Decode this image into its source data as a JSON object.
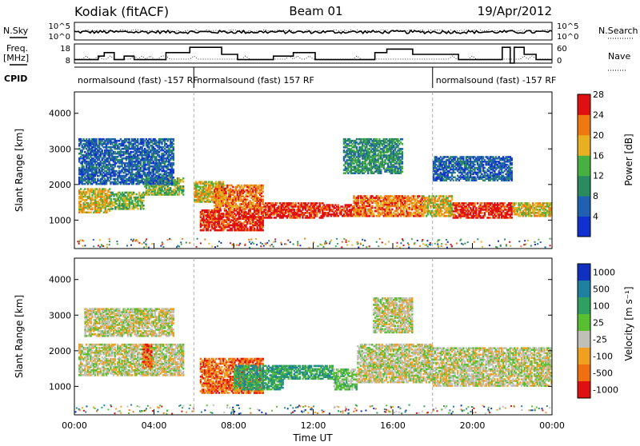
{
  "header": {
    "station": "Kodiak (fitACF)",
    "beam": "Beam 01",
    "date": "19/Apr/2012"
  },
  "status_panel": {
    "nsky_label": "N.Sky",
    "nsky_ticks": [
      "10^5",
      "10^0"
    ],
    "nsearch_label": "N.Search",
    "nsearch_ticks": [
      "10^5",
      "10^0"
    ],
    "freq_label": "Freq.",
    "freq_unit": "[MHz]",
    "freq_ticks": [
      "18",
      "8"
    ],
    "nave_label": "Nave",
    "nave_ticks": [
      "60",
      "0"
    ],
    "cpid_label": "CPID",
    "cpid_segments": [
      {
        "label": "normalsound (fast) -157 RF",
        "start": 0,
        "end": 6
      },
      {
        "label": "normalsound (fast) 157 RF",
        "start": 6,
        "end": 18
      },
      {
        "label": "normalsound (fast) -157 RF",
        "start": 18,
        "end": 24
      }
    ],
    "freq_steps": [
      {
        "t": 0,
        "f": 10
      },
      {
        "t": 1.2,
        "f": 12
      },
      {
        "t": 1.5,
        "f": 14
      },
      {
        "t": 2.0,
        "f": 10
      },
      {
        "t": 2.5,
        "f": 12
      },
      {
        "t": 3.0,
        "f": 10
      },
      {
        "t": 4.6,
        "f": 14
      },
      {
        "t": 5.8,
        "f": 17
      },
      {
        "t": 7.4,
        "f": 13
      },
      {
        "t": 8.2,
        "f": 10
      },
      {
        "t": 10.0,
        "f": 12
      },
      {
        "t": 11.0,
        "f": 14
      },
      {
        "t": 12.1,
        "f": 10
      },
      {
        "t": 15.1,
        "f": 14
      },
      {
        "t": 15.7,
        "f": 16
      },
      {
        "t": 17.0,
        "f": 13
      },
      {
        "t": 19.3,
        "f": 10
      },
      {
        "t": 19.8,
        "f": 10
      },
      {
        "t": 21.5,
        "f": 17
      },
      {
        "t": 21.9,
        "f": 8
      },
      {
        "t": 22.1,
        "f": 17
      },
      {
        "t": 22.6,
        "f": 13
      },
      {
        "t": 23.2,
        "f": 10
      },
      {
        "t": 24,
        "f": 10
      }
    ]
  },
  "chart_data": [
    {
      "type": "heatmap",
      "panel": "power",
      "ylabel": "Slant Range [km]",
      "y_ticks": [
        1000,
        2000,
        3000,
        4000
      ],
      "ylim": [
        200,
        4600
      ],
      "xlim": [
        0,
        24
      ],
      "colorbar_label": "Power [dB]",
      "colorbar_ticks": [
        "4",
        "8",
        "12",
        "16",
        "20",
        "24",
        "28"
      ],
      "colorbar_colors": [
        "#1030d0",
        "#2060b0",
        "#2a8a60",
        "#48b040",
        "#e8b020",
        "#f07810",
        "#e01010"
      ],
      "regions": [
        {
          "t0": 0.2,
          "t1": 1.8,
          "r0": 1200,
          "r1": 1900,
          "level": 4
        },
        {
          "t0": 1.8,
          "t1": 3.5,
          "r0": 1300,
          "r1": 1800,
          "level": 3
        },
        {
          "t0": 3.5,
          "t1": 5.5,
          "r0": 1700,
          "r1": 2200,
          "level": 3
        },
        {
          "t0": 6.0,
          "t1": 7.5,
          "r0": 1500,
          "r1": 2100,
          "level": 4
        },
        {
          "t0": 6.3,
          "t1": 9.5,
          "r0": 700,
          "r1": 1300,
          "level": 6
        },
        {
          "t0": 7.0,
          "t1": 9.5,
          "r0": 1300,
          "r1": 2000,
          "level": 5
        },
        {
          "t0": 9.5,
          "t1": 12.5,
          "r0": 1050,
          "r1": 1500,
          "level": 6
        },
        {
          "t0": 12.5,
          "t1": 14.0,
          "r0": 1100,
          "r1": 1450,
          "level": 6
        },
        {
          "t0": 14.0,
          "t1": 17.5,
          "r0": 1100,
          "r1": 1700,
          "level": 5
        },
        {
          "t0": 13.5,
          "t1": 16.5,
          "r0": 2300,
          "r1": 3300,
          "level": 2
        },
        {
          "t0": 17.5,
          "t1": 19.0,
          "r0": 1100,
          "r1": 1700,
          "level": 4
        },
        {
          "t0": 19.0,
          "t1": 22.0,
          "r0": 1050,
          "r1": 1500,
          "level": 6
        },
        {
          "t0": 22.0,
          "t1": 24.0,
          "r0": 1100,
          "r1": 1500,
          "level": 4
        },
        {
          "t0": 0.2,
          "t1": 5.0,
          "r0": 2000,
          "r1": 3300,
          "level": 1
        },
        {
          "t0": 18.0,
          "t1": 22.0,
          "r0": 2100,
          "r1": 2800,
          "level": 1
        }
      ]
    },
    {
      "type": "heatmap",
      "panel": "velocity",
      "ylabel": "Slant Range [km]",
      "y_ticks": [
        1000,
        2000,
        3000,
        4000
      ],
      "ylim": [
        200,
        4600
      ],
      "xlim": [
        0,
        24
      ],
      "xlabel": "Time UT",
      "x_ticks": [
        "00:00",
        "04:00",
        "08:00",
        "12:00",
        "16:00",
        "20:00",
        "00:00"
      ],
      "colorbar_label": "Velocity [m s⁻¹]",
      "colorbar_ticks": [
        "1000",
        "500",
        "100",
        "25",
        "-25",
        "-100",
        "-500",
        "-1000"
      ],
      "colorbar_colors": [
        "#1030c0",
        "#2080a0",
        "#30a060",
        "#58c030",
        "#c0c0b8",
        "#f0a020",
        "#f07010",
        "#e01010"
      ],
      "regions": [
        {
          "t0": 0.2,
          "t1": 5.5,
          "r0": 1300,
          "r1": 2200,
          "level": 4
        },
        {
          "t0": 3.4,
          "t1": 3.9,
          "r0": 1500,
          "r1": 2200,
          "level": 6
        },
        {
          "t0": 6.3,
          "t1": 9.5,
          "r0": 800,
          "r1": 1800,
          "level": 6
        },
        {
          "t0": 8.0,
          "t1": 10.5,
          "r0": 900,
          "r1": 1600,
          "level": 2
        },
        {
          "t0": 10.5,
          "t1": 13.0,
          "r0": 1200,
          "r1": 1600,
          "level": 2
        },
        {
          "t0": 13.0,
          "t1": 14.2,
          "r0": 900,
          "r1": 1500,
          "level": 3
        },
        {
          "t0": 14.2,
          "t1": 18.0,
          "r0": 1100,
          "r1": 2200,
          "level": 4
        },
        {
          "t0": 18.0,
          "t1": 24.0,
          "r0": 1000,
          "r1": 2100,
          "level": 4
        },
        {
          "t0": 15.0,
          "t1": 17.0,
          "r0": 2500,
          "r1": 3500,
          "level": 4
        },
        {
          "t0": 0.5,
          "t1": 5.0,
          "r0": 2400,
          "r1": 3200,
          "level": 4
        }
      ]
    }
  ]
}
